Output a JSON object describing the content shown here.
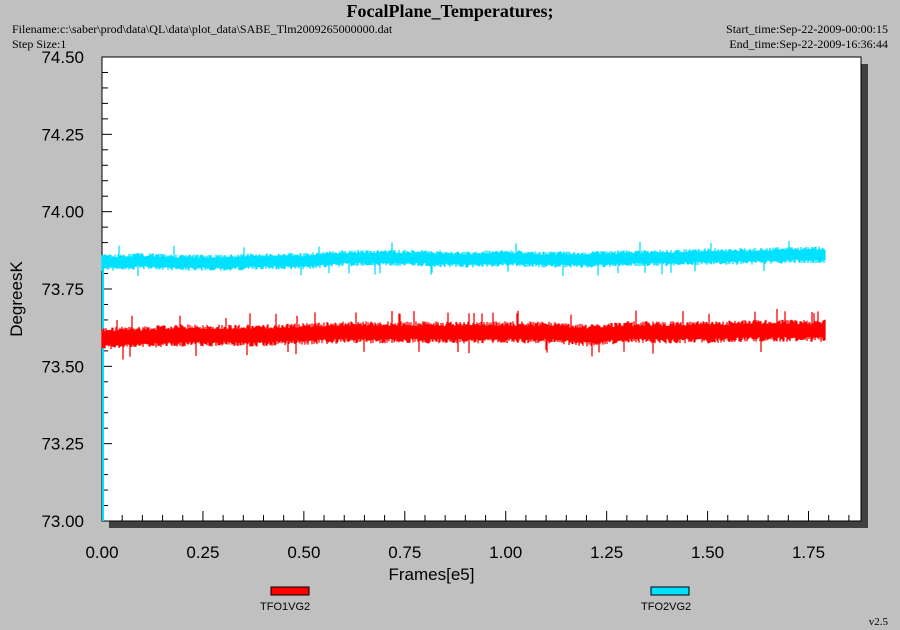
{
  "header": {
    "title": "FocalPlane_Temperatures;",
    "filename": "Filename:c:\\saber\\prod\\data\\QL\\data\\plot_data\\SABE_Tlm2009265000000.dat",
    "step_size": "Step Size:1",
    "start_time": "Start_time:Sep-22-2009-00:00:15",
    "end_time": "End_time:Sep-22-2009-16:36:44"
  },
  "version": "v2.5",
  "chart_data": {
    "type": "line",
    "xlabel": "Frames[e5]",
    "ylabel": "DegreesK",
    "xlim": [
      0,
      1.88
    ],
    "ylim": [
      73.0,
      74.5
    ],
    "x_ticks": [
      "0.00",
      "0.25",
      "0.50",
      "0.75",
      "1.00",
      "1.25",
      "1.50",
      "1.75"
    ],
    "y_ticks": [
      "73.00",
      "73.25",
      "73.50",
      "73.75",
      "74.00",
      "74.25",
      "74.50"
    ],
    "grid": false,
    "legend_position": "bottom",
    "series": [
      {
        "name": "TFO1VG2",
        "color": "#ff0000",
        "x": [
          0.0,
          0.1,
          0.2,
          0.3,
          0.4,
          0.5,
          0.6,
          0.7,
          0.8,
          0.9,
          1.0,
          1.1,
          1.2,
          1.3,
          1.4,
          1.5,
          1.6,
          1.7,
          1.79
        ],
        "y": [
          73.59,
          73.595,
          73.6,
          73.6,
          73.6,
          73.605,
          73.61,
          73.61,
          73.61,
          73.61,
          73.61,
          73.61,
          73.6,
          73.61,
          73.61,
          73.61,
          73.615,
          73.615,
          73.615
        ],
        "band": 0.04
      },
      {
        "name": "TFO2VG2",
        "color": "#00e0ff",
        "x": [
          0.0,
          0.1,
          0.2,
          0.3,
          0.4,
          0.5,
          0.6,
          0.7,
          0.8,
          0.9,
          1.0,
          1.1,
          1.2,
          1.3,
          1.4,
          1.5,
          1.6,
          1.7,
          1.79
        ],
        "y": [
          73.835,
          73.84,
          73.835,
          73.835,
          73.84,
          73.84,
          73.85,
          73.85,
          73.85,
          73.845,
          73.85,
          73.845,
          73.845,
          73.85,
          73.85,
          73.855,
          73.855,
          73.86,
          73.86
        ],
        "band": 0.03
      }
    ]
  }
}
